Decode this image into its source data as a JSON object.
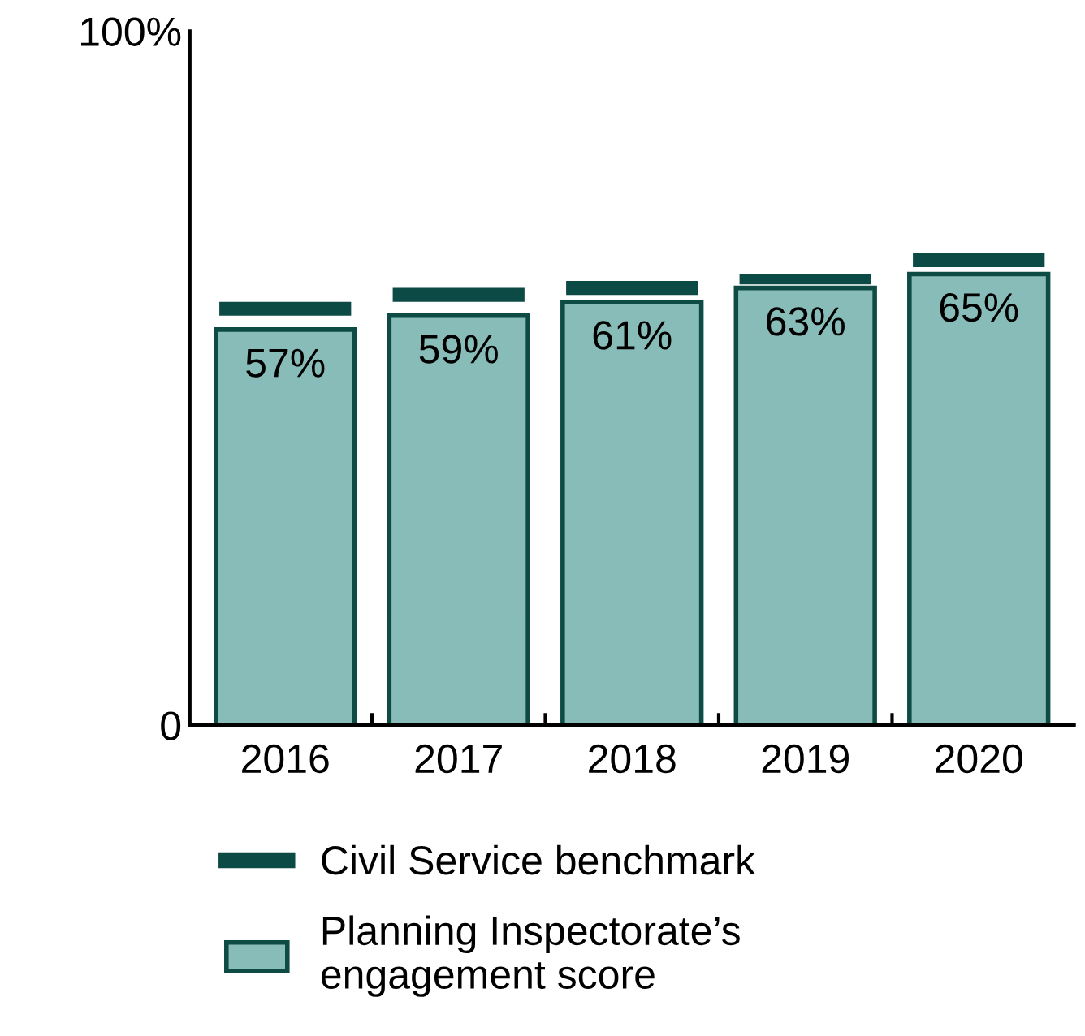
{
  "chart_data": {
    "type": "bar",
    "categories": [
      "2016",
      "2017",
      "2018",
      "2019",
      "2020"
    ],
    "series": [
      {
        "name": "Planning Inspectorate’s\nengagement score",
        "color": "#88bcb8",
        "values": [
          57,
          59,
          61,
          63,
          65
        ],
        "value_labels": [
          "57%",
          "59%",
          "61%",
          "63%",
          "65%"
        ]
      },
      {
        "name": "Civil Service benchmark",
        "color": "#0c4a45",
        "base": [
          59,
          61,
          62,
          63.5,
          66
        ],
        "values": [
          2,
          2,
          2,
          1.5,
          2
        ]
      }
    ],
    "ylim": [
      0,
      100
    ],
    "yticks": [
      0,
      {
        "value": 100,
        "label": "100%"
      }
    ],
    "grid": false,
    "legend": "bottom"
  }
}
